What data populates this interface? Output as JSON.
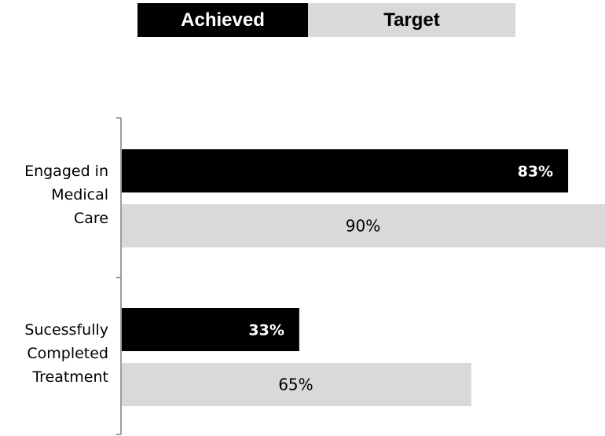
{
  "colors": {
    "achieved": "#000000",
    "target": "#d9d9d9",
    "achieved_label": "#ffffff",
    "target_label": "#000000",
    "axis": "#7f7f7f"
  },
  "legend": {
    "achieved_label": "Achieved",
    "target_label": "Target"
  },
  "chart_data": {
    "type": "bar",
    "orientation": "horizontal",
    "categories": [
      "Engaged in Medical Care",
      "Sucessfully Completed Treatment"
    ],
    "category_lines": [
      [
        "Engaged in",
        "Medical",
        "Care"
      ],
      [
        "Sucessfully",
        "Completed",
        "Treatment"
      ]
    ],
    "series": [
      {
        "name": "Achieved",
        "values": [
          83,
          33
        ],
        "labels": [
          "83%",
          "33%"
        ]
      },
      {
        "name": "Target",
        "values": [
          90,
          65
        ],
        "labels": [
          "90%",
          "65%"
        ]
      }
    ],
    "xlim": [
      0,
      90
    ],
    "value_axis_visible": false,
    "grid": false,
    "legend_position": "top"
  }
}
